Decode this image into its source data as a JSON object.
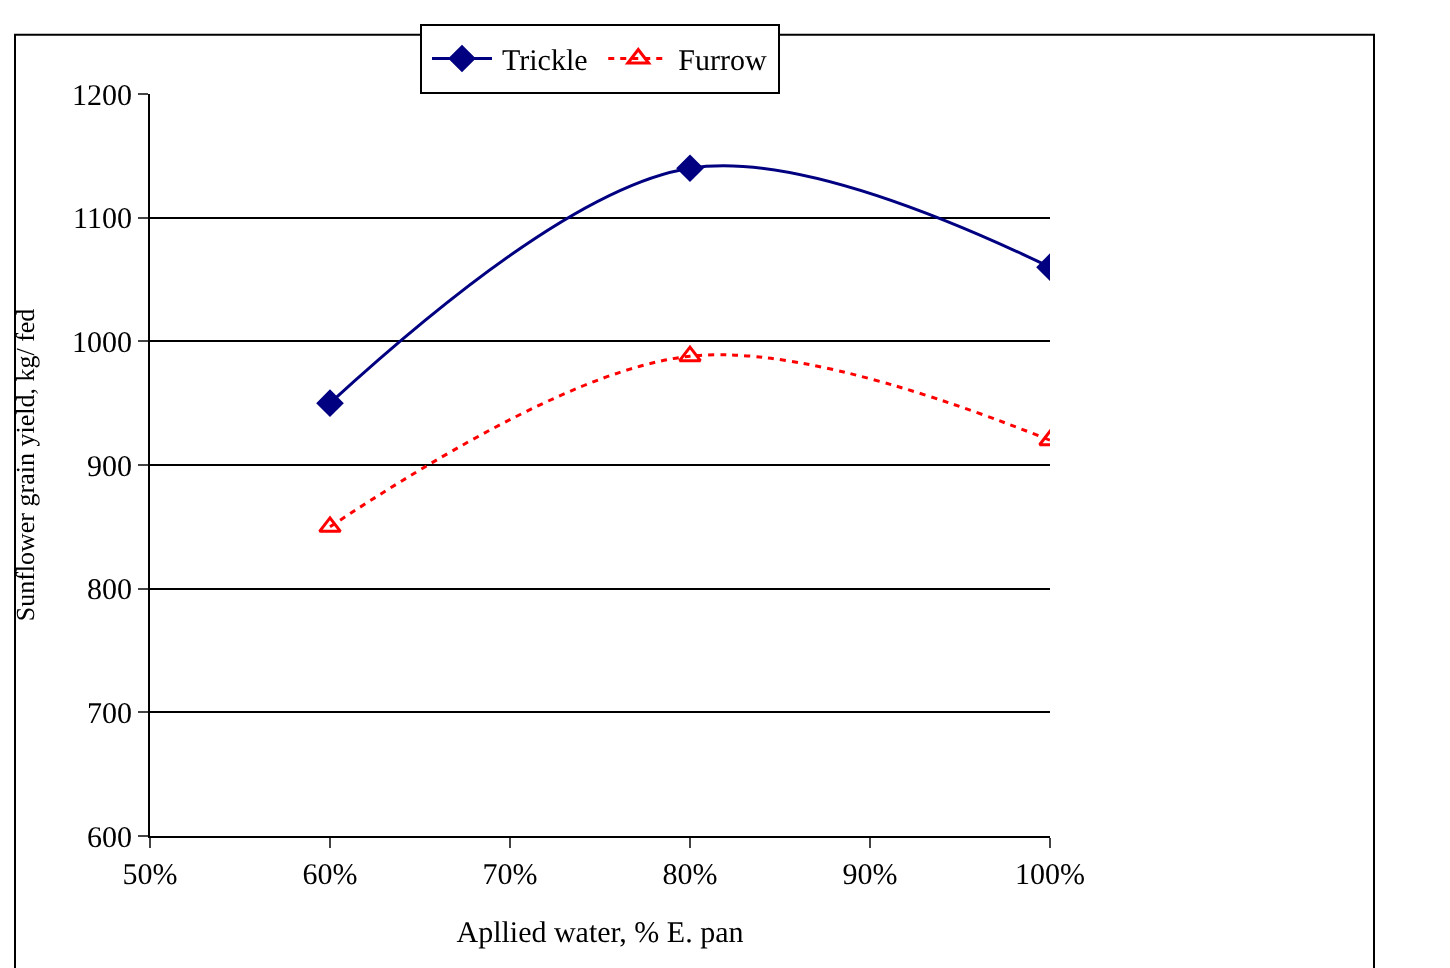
{
  "chart_data": {
    "type": "line",
    "xlabel": "Apllied water, % E. pan",
    "ylabel": "Sunflower grain yield, kg/ fed",
    "x": [
      60,
      80,
      100
    ],
    "series": [
      {
        "name": "Trickle",
        "color": "#000080",
        "values": [
          950,
          1140,
          1060
        ],
        "marker": "diamond",
        "line_style": "solid"
      },
      {
        "name": "Furrow",
        "color": "#ff0000",
        "values": [
          850,
          988,
          920
        ],
        "marker": "triangle",
        "line_style": "dotted"
      }
    ],
    "xlim": [
      50,
      100
    ],
    "xticks": [
      {
        "value": 50,
        "label": "50%"
      },
      {
        "value": 60,
        "label": "60%"
      },
      {
        "value": 70,
        "label": "70%"
      },
      {
        "value": 80,
        "label": "80%"
      },
      {
        "value": 90,
        "label": "90%"
      },
      {
        "value": 100,
        "label": "100%"
      }
    ],
    "ylim": [
      600,
      1200
    ],
    "yticks": [
      600,
      700,
      800,
      900,
      1000,
      1100,
      1200
    ],
    "grid": "y",
    "legend": "top"
  }
}
